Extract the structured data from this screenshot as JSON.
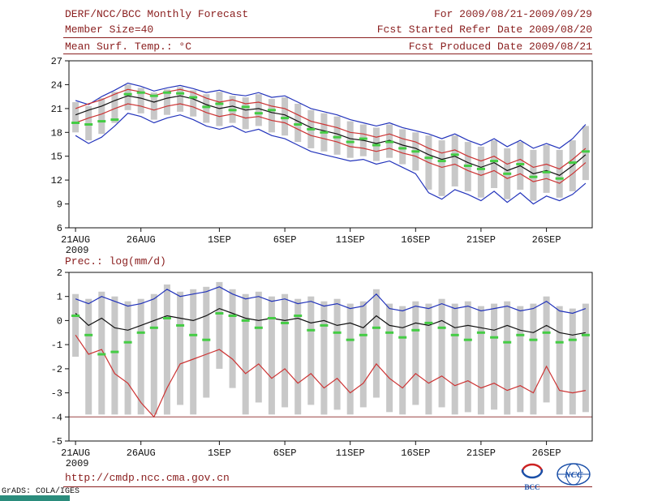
{
  "header": {
    "title": "DERF/NCC/BCC Monthly Forecast",
    "member_size": "Member Size=40",
    "var_label": "Mean Surf. Temp.: °C",
    "for_period": "For 2009/08/21-2009/09/29",
    "refer_date": "Fcst Started Refer Date 2009/08/20",
    "produced_date": "Fcst Produced Date 2009/08/21"
  },
  "footer": {
    "url": "http://cmdp.ncc.cma.gov.cn",
    "grads_credit": "GrADS: COLA/IGES",
    "bcc_label": "BCC",
    "ncc_label": "NCC"
  },
  "colors": {
    "header_text": "#8b2020",
    "axis_text": "#111111",
    "bar": "#c8c8c8",
    "envelope_line": "#2233bb",
    "mean_line": "#111111",
    "spread_line": "#cc3333",
    "obs_dash": "#44cc44",
    "floor_line": "#994444",
    "logo_red": "#cc2222",
    "logo_blue": "#1a4fa8",
    "grads_bar": "#2a8c7c"
  },
  "chart_data": [
    {
      "type": "line",
      "title": "Mean Surf. Temp.: °C",
      "ylabel": "°C",
      "ylim": [
        6,
        27
      ],
      "yticks": [
        6,
        9,
        12,
        15,
        18,
        21,
        24,
        27
      ],
      "grid": false,
      "legend": "none",
      "x_axis": {
        "n_days": 40,
        "year_label": "2009",
        "tick_labels": [
          "21AUG",
          "26AUG",
          "1SEP",
          "6SEP",
          "11SEP",
          "16SEP",
          "21SEP",
          "26SEP"
        ],
        "tick_days": [
          0,
          5,
          11,
          16,
          21,
          26,
          31,
          36
        ]
      },
      "series": [
        {
          "name": "ensemble-spread",
          "type": "bar",
          "color": "#c8c8c8",
          "low": [
            18.0,
            17.0,
            17.8,
            19.2,
            20.8,
            20.4,
            19.6,
            20.2,
            20.6,
            20.0,
            19.2,
            18.8,
            19.2,
            18.4,
            18.8,
            18.0,
            17.6,
            16.8,
            16.0,
            15.6,
            15.2,
            14.8,
            15.0,
            14.4,
            14.8,
            14.0,
            13.2,
            10.8,
            10.0,
            11.2,
            10.6,
            9.8,
            11.0,
            9.6,
            10.8,
            9.4,
            10.4,
            9.8,
            10.6,
            12.0
          ],
          "high": [
            21.8,
            21.3,
            22.3,
            23.1,
            24.0,
            23.6,
            23.0,
            23.4,
            23.7,
            23.3,
            22.8,
            23.1,
            22.6,
            22.4,
            22.8,
            22.2,
            22.4,
            21.6,
            20.8,
            20.4,
            20.0,
            19.4,
            19.0,
            18.6,
            19.0,
            18.4,
            18.0,
            17.6,
            17.0,
            17.6,
            16.8,
            16.2,
            17.0,
            16.0,
            16.8,
            15.8,
            16.4,
            15.8,
            17.0,
            18.8
          ]
        },
        {
          "name": "max-envelope",
          "type": "line",
          "color": "#2233bb",
          "values": [
            22.0,
            21.5,
            22.5,
            23.3,
            24.2,
            23.8,
            23.2,
            23.6,
            23.9,
            23.5,
            23.0,
            23.3,
            22.8,
            22.6,
            23.0,
            22.4,
            22.6,
            21.8,
            21.0,
            20.6,
            20.2,
            19.6,
            19.2,
            18.8,
            19.2,
            18.6,
            18.2,
            17.8,
            17.2,
            17.8,
            17.0,
            16.4,
            17.2,
            16.2,
            17.0,
            16.0,
            16.6,
            16.0,
            17.2,
            19.0
          ]
        },
        {
          "name": "min-envelope",
          "type": "line",
          "color": "#2233bb",
          "values": [
            17.6,
            16.6,
            17.4,
            18.8,
            20.4,
            20.0,
            19.2,
            19.8,
            20.2,
            19.6,
            18.8,
            18.4,
            18.8,
            18.0,
            18.4,
            17.6,
            17.2,
            16.4,
            15.6,
            15.2,
            14.8,
            14.4,
            14.6,
            14.0,
            14.4,
            13.6,
            12.8,
            10.4,
            9.6,
            10.8,
            10.2,
            9.4,
            10.6,
            9.2,
            10.4,
            9.0,
            10.0,
            9.4,
            10.2,
            11.6
          ]
        },
        {
          "name": "upper-spread",
          "type": "line",
          "color": "#cc3333",
          "values": [
            21.0,
            21.6,
            22.1,
            22.8,
            23.4,
            23.1,
            22.6,
            23.1,
            23.4,
            23.0,
            22.3,
            21.8,
            22.1,
            21.6,
            21.8,
            21.3,
            21.0,
            20.2,
            19.4,
            19.0,
            18.6,
            18.0,
            17.8,
            17.4,
            17.8,
            17.2,
            16.8,
            16.0,
            15.4,
            15.8,
            15.0,
            14.4,
            15.0,
            14.0,
            14.6,
            13.6,
            14.0,
            13.4,
            14.6,
            16.0
          ]
        },
        {
          "name": "lower-spread",
          "type": "line",
          "color": "#cc3333",
          "values": [
            19.2,
            19.8,
            20.3,
            21.0,
            21.6,
            21.3,
            20.8,
            21.3,
            21.6,
            21.2,
            20.5,
            20.0,
            20.3,
            19.8,
            20.0,
            19.5,
            19.2,
            18.4,
            17.6,
            17.2,
            16.8,
            16.2,
            16.0,
            15.6,
            16.0,
            15.4,
            15.0,
            14.2,
            13.6,
            14.0,
            13.2,
            12.6,
            13.2,
            12.2,
            12.8,
            11.8,
            12.2,
            11.6,
            12.8,
            14.2
          ]
        },
        {
          "name": "ensemble-mean",
          "type": "line",
          "color": "#111111",
          "values": [
            20.2,
            20.8,
            21.3,
            22.0,
            22.6,
            22.3,
            21.8,
            22.3,
            22.6,
            22.2,
            21.5,
            21.0,
            21.3,
            20.8,
            21.0,
            20.5,
            20.2,
            19.4,
            18.6,
            18.2,
            17.8,
            17.2,
            17.0,
            16.6,
            17.0,
            16.4,
            16.0,
            15.2,
            14.6,
            15.0,
            14.2,
            13.6,
            14.2,
            13.2,
            13.8,
            12.8,
            13.2,
            12.6,
            13.8,
            15.2
          ]
        },
        {
          "name": "observation",
          "type": "dash",
          "color": "#44cc44",
          "values": [
            19.2,
            19.0,
            19.4,
            19.6,
            22.8,
            23.0,
            22.6,
            23.0,
            22.9,
            22.4,
            21.2,
            21.6,
            20.8,
            21.2,
            20.4,
            20.8,
            19.8,
            19.0,
            18.4,
            18.0,
            17.4,
            16.8,
            17.2,
            16.4,
            16.8,
            16.0,
            15.6,
            14.8,
            14.4,
            15.2,
            13.8,
            13.4,
            14.4,
            12.8,
            14.0,
            12.4,
            13.0,
            12.2,
            14.2,
            15.6
          ]
        }
      ]
    },
    {
      "type": "line",
      "title": "Prec.: log(mm/d)",
      "ylabel": "log(mm/d)",
      "ylim": [
        -5,
        2
      ],
      "yticks": [
        -5,
        -4,
        -3,
        -2,
        -1,
        0,
        1,
        2
      ],
      "grid": false,
      "legend": "none",
      "x_axis": {
        "n_days": 40,
        "year_label": "2009",
        "tick_labels": [
          "21AUG",
          "26AUG",
          "1SEP",
          "6SEP",
          "11SEP",
          "16SEP",
          "21SEP",
          "26SEP"
        ],
        "tick_days": [
          0,
          5,
          11,
          16,
          21,
          26,
          31,
          36
        ]
      },
      "series": [
        {
          "name": "ensemble-spread",
          "type": "bar",
          "color": "#c8c8c8",
          "low": [
            -1.5,
            -3.9,
            -3.9,
            -3.9,
            -3.9,
            -3.9,
            -3.9,
            -3.9,
            -3.5,
            -3.9,
            -3.2,
            -2.0,
            -2.8,
            -3.9,
            -3.4,
            -3.9,
            -3.6,
            -3.9,
            -3.5,
            -3.9,
            -3.7,
            -3.9,
            -3.6,
            -3.2,
            -3.8,
            -3.9,
            -3.5,
            -3.9,
            -3.6,
            -3.9,
            -3.8,
            -3.9,
            -3.7,
            -3.9,
            -3.8,
            -3.9,
            -3.4,
            -3.9,
            -3.9,
            -3.8
          ],
          "high": [
            1.1,
            0.9,
            1.2,
            1.0,
            0.8,
            0.9,
            1.1,
            1.5,
            1.2,
            1.3,
            1.4,
            1.6,
            1.3,
            1.1,
            1.2,
            1.0,
            1.1,
            0.9,
            1.0,
            0.8,
            0.9,
            0.7,
            0.8,
            1.3,
            0.7,
            0.6,
            0.8,
            0.7,
            0.9,
            0.7,
            0.8,
            0.6,
            0.7,
            0.8,
            0.6,
            0.7,
            1.0,
            0.6,
            0.5,
            0.7
          ]
        },
        {
          "name": "floor",
          "type": "hline",
          "color": "#994444",
          "value": -4
        },
        {
          "name": "max-envelope",
          "type": "line",
          "color": "#2233bb",
          "values": [
            0.9,
            0.7,
            1.0,
            0.8,
            0.6,
            0.7,
            0.9,
            1.3,
            1.0,
            1.1,
            1.2,
            1.4,
            1.1,
            0.9,
            1.0,
            0.8,
            0.9,
            0.7,
            0.8,
            0.6,
            0.7,
            0.5,
            0.6,
            1.1,
            0.5,
            0.4,
            0.6,
            0.5,
            0.7,
            0.5,
            0.6,
            0.4,
            0.5,
            0.6,
            0.4,
            0.5,
            0.8,
            0.4,
            0.3,
            0.5
          ]
        },
        {
          "name": "min-envelope",
          "type": "line",
          "color": "#cc3333",
          "values": [
            -0.6,
            -1.4,
            -1.2,
            -2.2,
            -2.6,
            -3.4,
            -4.0,
            -2.8,
            -1.8,
            -1.6,
            -1.4,
            -1.2,
            -1.6,
            -2.2,
            -1.8,
            -2.4,
            -2.0,
            -2.6,
            -2.2,
            -2.8,
            -2.4,
            -3.0,
            -2.6,
            -1.8,
            -2.4,
            -2.8,
            -2.2,
            -2.6,
            -2.3,
            -2.7,
            -2.5,
            -2.8,
            -2.6,
            -2.9,
            -2.7,
            -3.0,
            -1.9,
            -2.9,
            -3.0,
            -2.9
          ]
        },
        {
          "name": "ensemble-mean",
          "type": "line",
          "color": "#111111",
          "values": [
            0.3,
            -0.2,
            0.1,
            -0.3,
            -0.4,
            -0.2,
            0.0,
            0.2,
            0.1,
            0.0,
            0.2,
            0.5,
            0.3,
            0.1,
            0.0,
            0.1,
            0.0,
            0.1,
            -0.1,
            0.0,
            -0.2,
            -0.1,
            -0.3,
            0.2,
            -0.2,
            -0.3,
            -0.1,
            -0.2,
            0.0,
            -0.3,
            -0.2,
            -0.3,
            -0.4,
            -0.2,
            -0.4,
            -0.5,
            -0.2,
            -0.5,
            -0.6,
            -0.5
          ]
        },
        {
          "name": "observation",
          "type": "dash",
          "color": "#44cc44",
          "values": [
            0.2,
            -0.6,
            -1.4,
            -1.3,
            -0.9,
            -0.5,
            -0.3,
            0.1,
            -0.2,
            -0.6,
            -0.8,
            0.3,
            0.2,
            0.0,
            -0.3,
            0.1,
            -0.1,
            0.2,
            -0.4,
            -0.2,
            -0.5,
            -0.8,
            -0.6,
            -0.3,
            -0.5,
            -0.7,
            -0.4,
            -0.1,
            -0.3,
            -0.6,
            -0.8,
            -0.5,
            -0.7,
            -0.9,
            -0.6,
            -0.8,
            -0.5,
            -0.9,
            -0.8,
            -0.6
          ]
        }
      ]
    }
  ]
}
